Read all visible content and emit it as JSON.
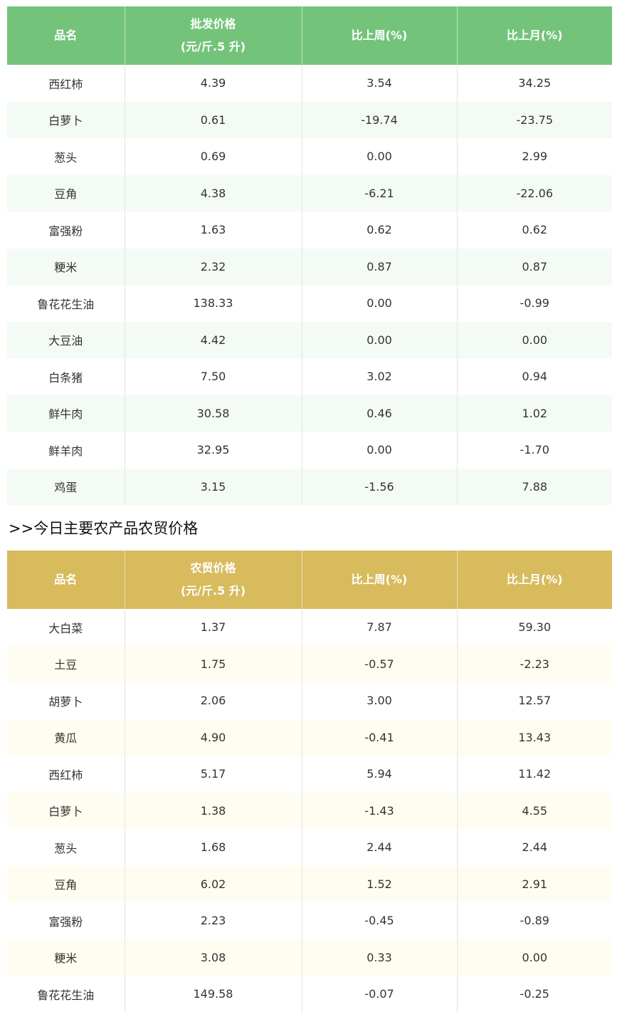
{
  "headers": {
    "name": "品名",
    "wholesale_price_line1": "批发价格",
    "retail_price_line1": "农贸价格",
    "price_unit": "(元/斤.5 升)",
    "week_change": "比上周(%)",
    "month_change": "比上月(%)"
  },
  "section_title": ">>今日主要农产品农贸价格",
  "colors": {
    "wholesale_header": "#73c47a",
    "retail_header": "#d7bb5d"
  },
  "wholesale_rows": [
    [
      "西红柿",
      "4.39",
      "3.54",
      "34.25"
    ],
    [
      "白萝卜",
      "0.61",
      "-19.74",
      "-23.75"
    ],
    [
      "葱头",
      "0.69",
      "0.00",
      "2.99"
    ],
    [
      "豆角",
      "4.38",
      "-6.21",
      "-22.06"
    ],
    [
      "富强粉",
      "1.63",
      "0.62",
      "0.62"
    ],
    [
      "粳米",
      "2.32",
      "0.87",
      "0.87"
    ],
    [
      "鲁花花生油",
      "138.33",
      "0.00",
      "-0.99"
    ],
    [
      "大豆油",
      "4.42",
      "0.00",
      "0.00"
    ],
    [
      "白条猪",
      "7.50",
      "3.02",
      "0.94"
    ],
    [
      "鲜牛肉",
      "30.58",
      "0.46",
      "1.02"
    ],
    [
      "鲜羊肉",
      "32.95",
      "0.00",
      "-1.70"
    ],
    [
      "鸡蛋",
      "3.15",
      "-1.56",
      "7.88"
    ]
  ],
  "retail_rows": [
    [
      "大白菜",
      "1.37",
      "7.87",
      "59.30"
    ],
    [
      "土豆",
      "1.75",
      "-0.57",
      "-2.23"
    ],
    [
      "胡萝卜",
      "2.06",
      "3.00",
      "12.57"
    ],
    [
      "黄瓜",
      "4.90",
      "-0.41",
      "13.43"
    ],
    [
      "西红柿",
      "5.17",
      "5.94",
      "11.42"
    ],
    [
      "白萝卜",
      "1.38",
      "-1.43",
      "4.55"
    ],
    [
      "葱头",
      "1.68",
      "2.44",
      "2.44"
    ],
    [
      "豆角",
      "6.02",
      "1.52",
      "2.91"
    ],
    [
      "富强粉",
      "2.23",
      "-0.45",
      "-0.89"
    ],
    [
      "粳米",
      "3.08",
      "0.33",
      "0.00"
    ],
    [
      "鲁花花生油",
      "149.58",
      "-0.07",
      "-0.25"
    ]
  ]
}
